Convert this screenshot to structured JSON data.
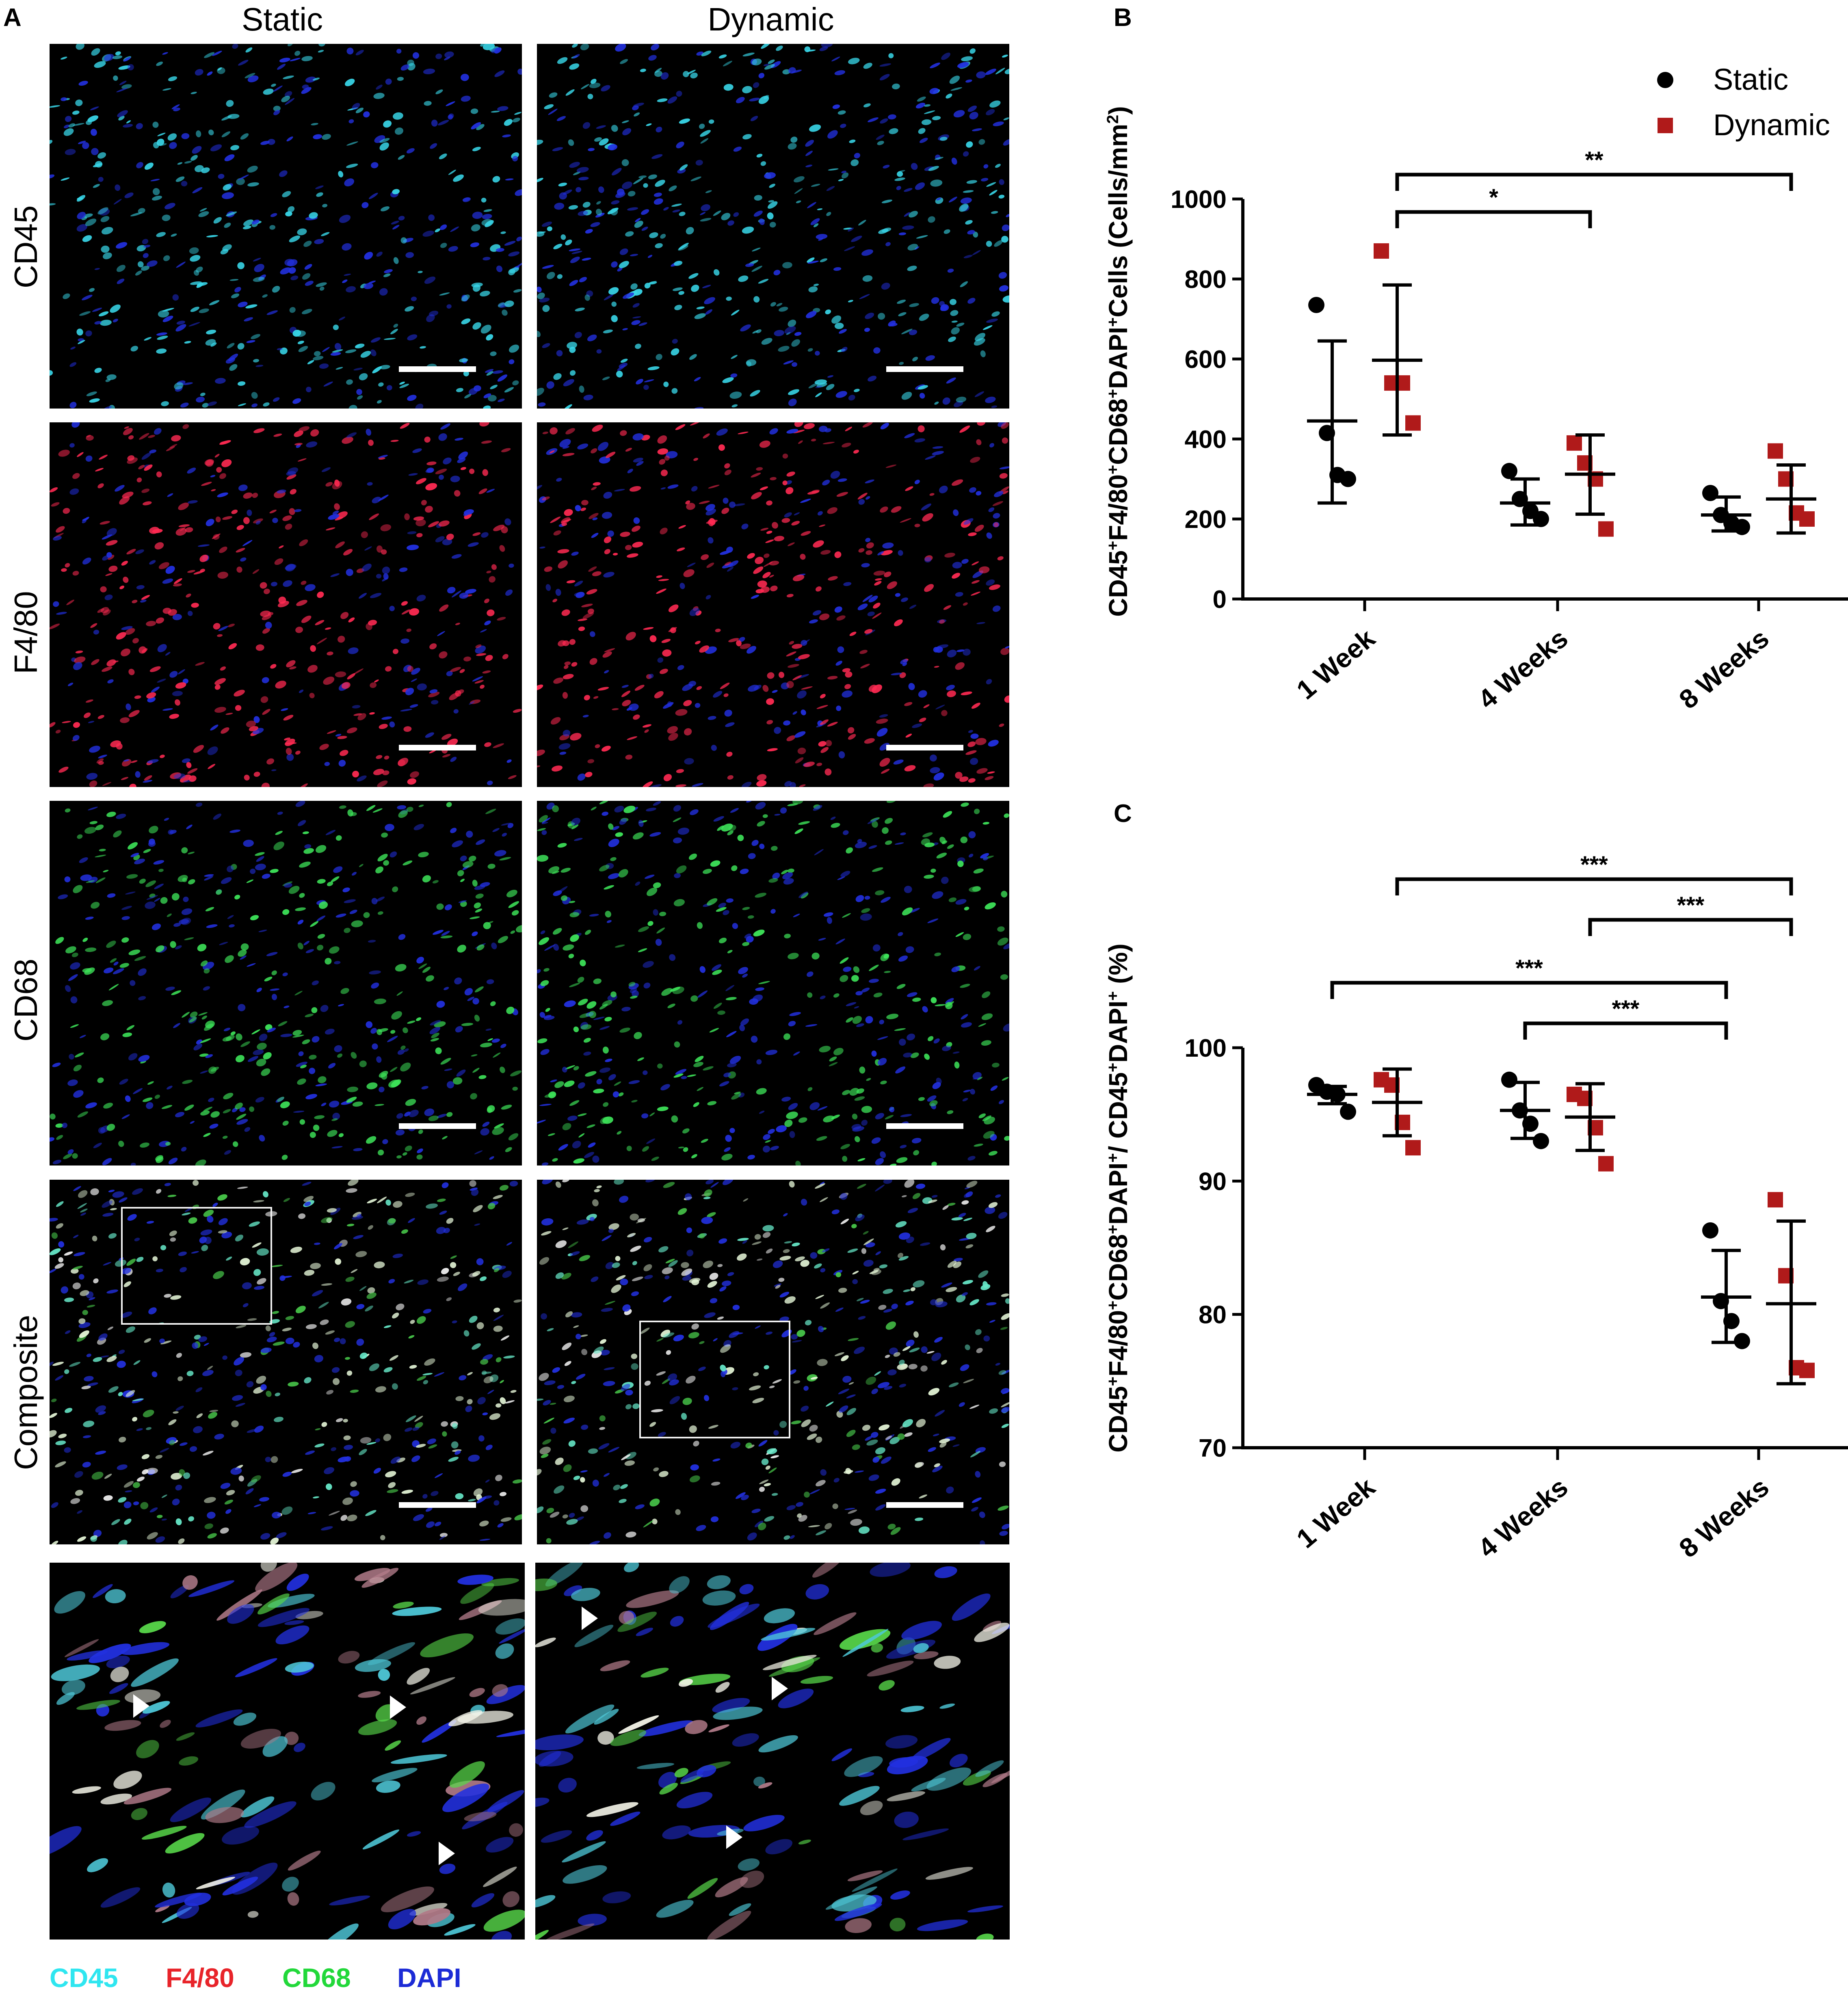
{
  "panels": {
    "a": "A",
    "b": "B",
    "c": "C"
  },
  "figure_a": {
    "columns": [
      "Static",
      "Dynamic"
    ],
    "rows": [
      "CD45",
      "F4/80",
      "CD68",
      "Composite"
    ],
    "channel_legend": [
      {
        "label": "CD45",
        "color": "#2fe6f0"
      },
      {
        "label": "F4/80",
        "color": "#e8242a"
      },
      {
        "label": "CD68",
        "color": "#22d83a"
      },
      {
        "label": "DAPI",
        "color": "#1c2bd6"
      }
    ],
    "stain_colors": {
      "CD45": "#38d6e8",
      "F4/80": "#ff2a52",
      "CD68": "#3ee65a",
      "DAPI": "#2230e0",
      "Composite": "#d8f0c8"
    }
  },
  "chart_data": [
    {
      "type": "scatter",
      "panel": "B",
      "ylabel_parts": [
        "CD45",
        "+",
        "F4/80",
        "+",
        "CD68",
        "+",
        "DAPI",
        "+",
        "Cells (Cells/mm",
        "2",
        ")"
      ],
      "categories": [
        "1 Week",
        "4 Weeks",
        "8 Weeks"
      ],
      "ylim": [
        0,
        1000
      ],
      "yticks": [
        0,
        200,
        400,
        600,
        800,
        1000
      ],
      "legend": {
        "position": "top-right"
      },
      "series": [
        {
          "name": "Static",
          "color": "#000000",
          "marker": "circle",
          "points": [
            [
              735,
              415,
              310,
              300
            ],
            [
              320,
              250,
              220,
              200
            ],
            [
              265,
              210,
              190,
              180
            ]
          ],
          "mean": [
            445,
            240,
            210
          ],
          "sd_low": [
            240,
            185,
            170
          ],
          "sd_high": [
            645,
            300,
            255
          ]
        },
        {
          "name": "Dynamic",
          "color": "#b01a1a",
          "marker": "square",
          "points": [
            [
              870,
              540,
              540,
              440
            ],
            [
              390,
              340,
              300,
              175
            ],
            [
              370,
              300,
              215,
              200
            ]
          ],
          "mean": [
            597,
            312,
            250
          ],
          "sd_low": [
            410,
            212,
            165
          ],
          "sd_high": [
            785,
            410,
            335
          ]
        }
      ],
      "significance": [
        {
          "from": "1 Week Dynamic",
          "to": "4 Weeks Dynamic",
          "label": "*"
        },
        {
          "from": "1 Week Dynamic",
          "to": "8 Weeks Dynamic",
          "label": "**"
        }
      ]
    },
    {
      "type": "scatter",
      "panel": "C",
      "ylabel_parts": [
        "CD45",
        "+",
        "F4/80",
        "+",
        "CD68",
        "+",
        "DAPI",
        "+",
        "/ CD45",
        "+",
        "DAPI",
        "+",
        " (%)"
      ],
      "categories": [
        "1 Week",
        "4 Weeks",
        "8 Weeks"
      ],
      "ylim": [
        70,
        100
      ],
      "yticks": [
        70,
        80,
        90,
        100
      ],
      "series": [
        {
          "name": "Static",
          "color": "#000000",
          "marker": "circle",
          "points": [
            [
              97.2,
              96.7,
              96.5,
              95.2
            ],
            [
              97.6,
              95.3,
              94.3,
              93.0
            ],
            [
              86.3,
              81.0,
              79.5,
              78.0
            ]
          ],
          "mean": [
            96.5,
            95.3,
            81.3
          ],
          "sd_low": [
            95.8,
            93.2,
            77.9
          ],
          "sd_high": [
            97.1,
            97.4,
            84.8
          ]
        },
        {
          "name": "Dynamic",
          "color": "#b01a1a",
          "marker": "square",
          "points": [
            [
              97.6,
              97.2,
              94.4,
              92.5
            ],
            [
              96.5,
              96.2,
              94.0,
              91.3
            ],
            [
              88.6,
              82.9,
              76.0,
              75.8
            ]
          ],
          "mean": [
            95.9,
            94.8,
            80.8
          ],
          "sd_low": [
            93.4,
            92.3,
            74.8
          ],
          "sd_high": [
            98.4,
            97.3,
            87.0
          ]
        }
      ],
      "significance": [
        {
          "from": "1 Week Dynamic",
          "to": "8 Weeks Dynamic",
          "label": "***"
        },
        {
          "from": "4 Weeks Dynamic",
          "to": "8 Weeks Dynamic",
          "label": "***"
        },
        {
          "from": "1 Week Static",
          "to": "8 Weeks Static",
          "label": "***"
        },
        {
          "from": "4 Weeks Static",
          "to": "8 Weeks Static",
          "label": "***"
        }
      ]
    }
  ]
}
